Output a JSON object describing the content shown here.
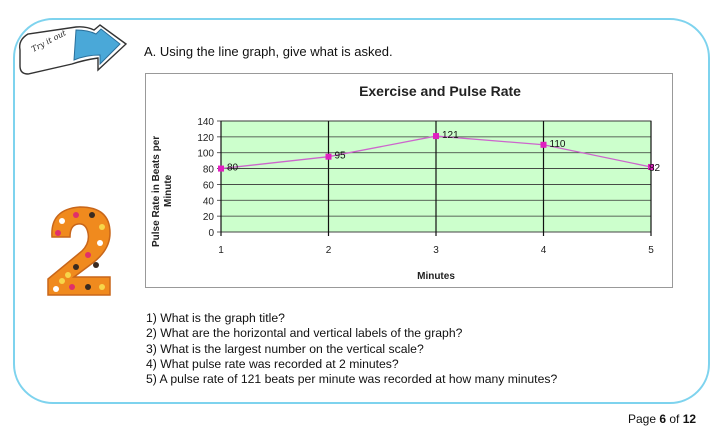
{
  "start_badge": {
    "label": "Try it out"
  },
  "instruction": "A.  Using the line graph, give what is asked.",
  "number_badge": {
    "digit": "2",
    "colors": {
      "fill": "#f08a1e",
      "dots": [
        "#ffffff",
        "#e0306a",
        "#3a2a20",
        "#f7d64a"
      ]
    }
  },
  "chart_data": {
    "type": "line",
    "title": "Exercise and Pulse Rate",
    "xlabel": "Minutes",
    "ylabel": "Pulse Rate in Beats per Minute",
    "x": [
      1,
      2,
      3,
      4,
      5
    ],
    "x_tick_labels": [
      "1",
      "2",
      "3",
      "4",
      "5"
    ],
    "y_ticks": [
      0,
      20,
      40,
      60,
      80,
      100,
      120,
      140
    ],
    "ylim": [
      0,
      140
    ],
    "series": [
      {
        "values": [
          80,
          95,
          121,
          110,
          82
        ],
        "data_labels": [
          "80",
          "95",
          "121",
          "110",
          "82"
        ],
        "color": "#cc66cc",
        "marker_color": "#e020c0"
      }
    ],
    "plot_background": "#ccffcc",
    "grid": true,
    "legend": "none"
  },
  "questions": [
    "1) What is the graph title?",
    "2) What are the horizontal and vertical labels of the graph?",
    "3) What is the largest number on the vertical scale?",
    "4) What pulse rate was recorded at 2 minutes?",
    "5) A pulse rate of 121 beats per minute was recorded at how many minutes?"
  ],
  "page_footer": {
    "prefix": "Page ",
    "current": "6",
    "middle": " of ",
    "total": "12"
  },
  "colors": {
    "frame_border": "#7ed3ee",
    "arrow_fill": "#4aa8d8"
  }
}
